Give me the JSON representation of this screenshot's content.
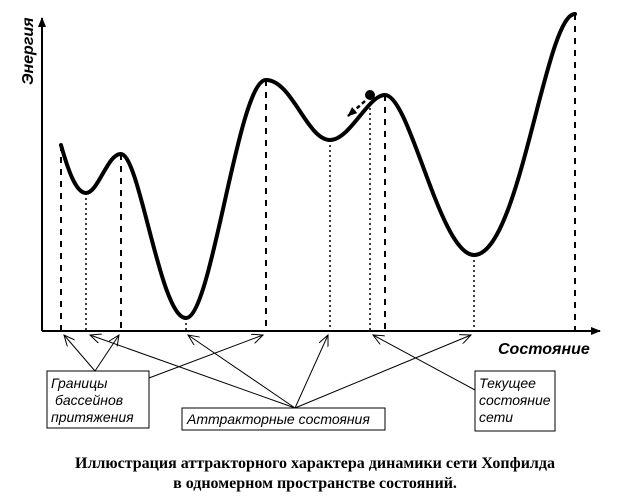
{
  "diagram": {
    "y_axis_label": "Энергия",
    "x_axis_label": "Состояние",
    "boxes": {
      "boundaries": [
        "Границы",
        "бассейнов",
        "притяжения"
      ],
      "attractors": "Аттракторные состояния",
      "current": [
        "Текущее",
        "состояние",
        "сети"
      ]
    }
  },
  "caption": {
    "line1": "Иллюстрация аттракторного характера динамики сети Хопфилда",
    "line2": "в  одномерном пространстве состояний."
  }
}
